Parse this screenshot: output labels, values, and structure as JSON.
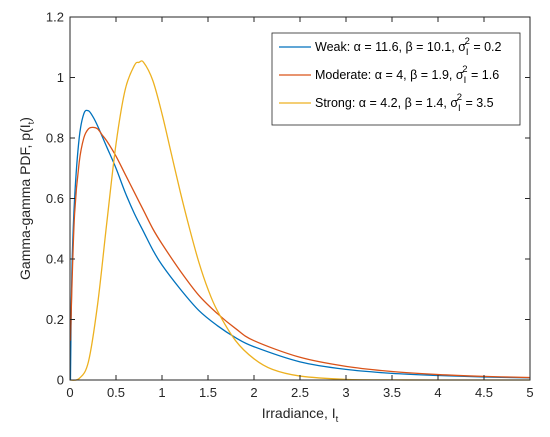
{
  "chart_data": {
    "type": "line",
    "xlabel": "Irradiance, I",
    "xlabel_sub": "t",
    "ylabel": "Gamma-gamma PDF, p(I",
    "ylabel_sub": "t",
    "ylabel_close": ")",
    "xlim": [
      0,
      5
    ],
    "ylim": [
      0,
      1.2
    ],
    "x_ticks": [
      0,
      0.5,
      1,
      1.5,
      2,
      2.5,
      3,
      3.5,
      4,
      4.5,
      5
    ],
    "x_tick_labels": [
      "0",
      "0.5",
      "1",
      "1.5",
      "2",
      "2.5",
      "3",
      "3.5",
      "4",
      "4.5",
      "5"
    ],
    "y_ticks": [
      0,
      0.2,
      0.4,
      0.6,
      0.8,
      1,
      1.2
    ],
    "y_tick_labels": [
      "0",
      "0.2",
      "0.4",
      "0.6",
      "0.8",
      "1",
      "1.2"
    ],
    "grid": false,
    "legend_position": "top-right",
    "series": [
      {
        "name": "Weak: α = 11.6, β = 10.1, σI² = 0.2",
        "label_main": "Weak: α = 11.6, β = 10.1, σ",
        "label_sub": "I",
        "label_sup": "2",
        "label_tail": " = 0.2",
        "color": "#0072BD",
        "x": [
          0.005,
          0.02,
          0.05,
          0.1,
          0.15,
          0.2,
          0.25,
          0.3,
          0.4,
          0.5,
          0.6,
          0.7,
          0.8,
          0.9,
          1.0,
          1.2,
          1.4,
          1.6,
          1.8,
          2.0,
          2.5,
          3.0,
          3.5,
          4.0,
          4.5,
          5.0
        ],
        "y": [
          0.0,
          0.35,
          0.6,
          0.8,
          0.88,
          0.89,
          0.87,
          0.84,
          0.77,
          0.7,
          0.62,
          0.55,
          0.49,
          0.43,
          0.38,
          0.3,
          0.23,
          0.18,
          0.14,
          0.11,
          0.06,
          0.035,
          0.022,
          0.015,
          0.01,
          0.007
        ]
      },
      {
        "name": "Moderate: α = 4, β = 1.9, σI² = 1.6",
        "label_main": "Moderate: α = 4, β = 1.9, σ",
        "label_sub": "I",
        "label_sup": "2",
        "label_tail": " = 1.6",
        "color": "#D95319",
        "x": [
          0.005,
          0.02,
          0.05,
          0.1,
          0.15,
          0.2,
          0.25,
          0.3,
          0.35,
          0.4,
          0.5,
          0.6,
          0.7,
          0.8,
          0.9,
          1.0,
          1.2,
          1.4,
          1.6,
          1.8,
          2.0,
          2.5,
          3.0,
          3.5,
          4.0,
          4.5,
          5.0
        ],
        "y": [
          0.13,
          0.3,
          0.55,
          0.72,
          0.8,
          0.83,
          0.835,
          0.83,
          0.81,
          0.79,
          0.74,
          0.68,
          0.62,
          0.56,
          0.5,
          0.45,
          0.36,
          0.28,
          0.22,
          0.17,
          0.13,
          0.075,
          0.045,
          0.028,
          0.018,
          0.012,
          0.008
        ]
      },
      {
        "name": "Strong: α = 4.2, β = 1.4, σI² = 3.5",
        "label_main": "Strong: α = 4.2, β = 1.4, σ",
        "label_sub": "I",
        "label_sup": "2",
        "label_tail": " = 3.5",
        "color": "#EDB120",
        "x": [
          0.0,
          0.1,
          0.2,
          0.3,
          0.4,
          0.5,
          0.6,
          0.7,
          0.75,
          0.8,
          0.9,
          1.0,
          1.1,
          1.2,
          1.3,
          1.4,
          1.5,
          1.6,
          1.8,
          2.0,
          2.2,
          2.5,
          3.0,
          3.5,
          4.0,
          5.0
        ],
        "y": [
          0.0,
          0.005,
          0.06,
          0.25,
          0.52,
          0.78,
          0.96,
          1.04,
          1.05,
          1.05,
          0.99,
          0.88,
          0.75,
          0.62,
          0.5,
          0.39,
          0.3,
          0.23,
          0.13,
          0.07,
          0.035,
          0.013,
          0.002,
          0.0004,
          0.0001,
          0.0
        ]
      }
    ]
  }
}
